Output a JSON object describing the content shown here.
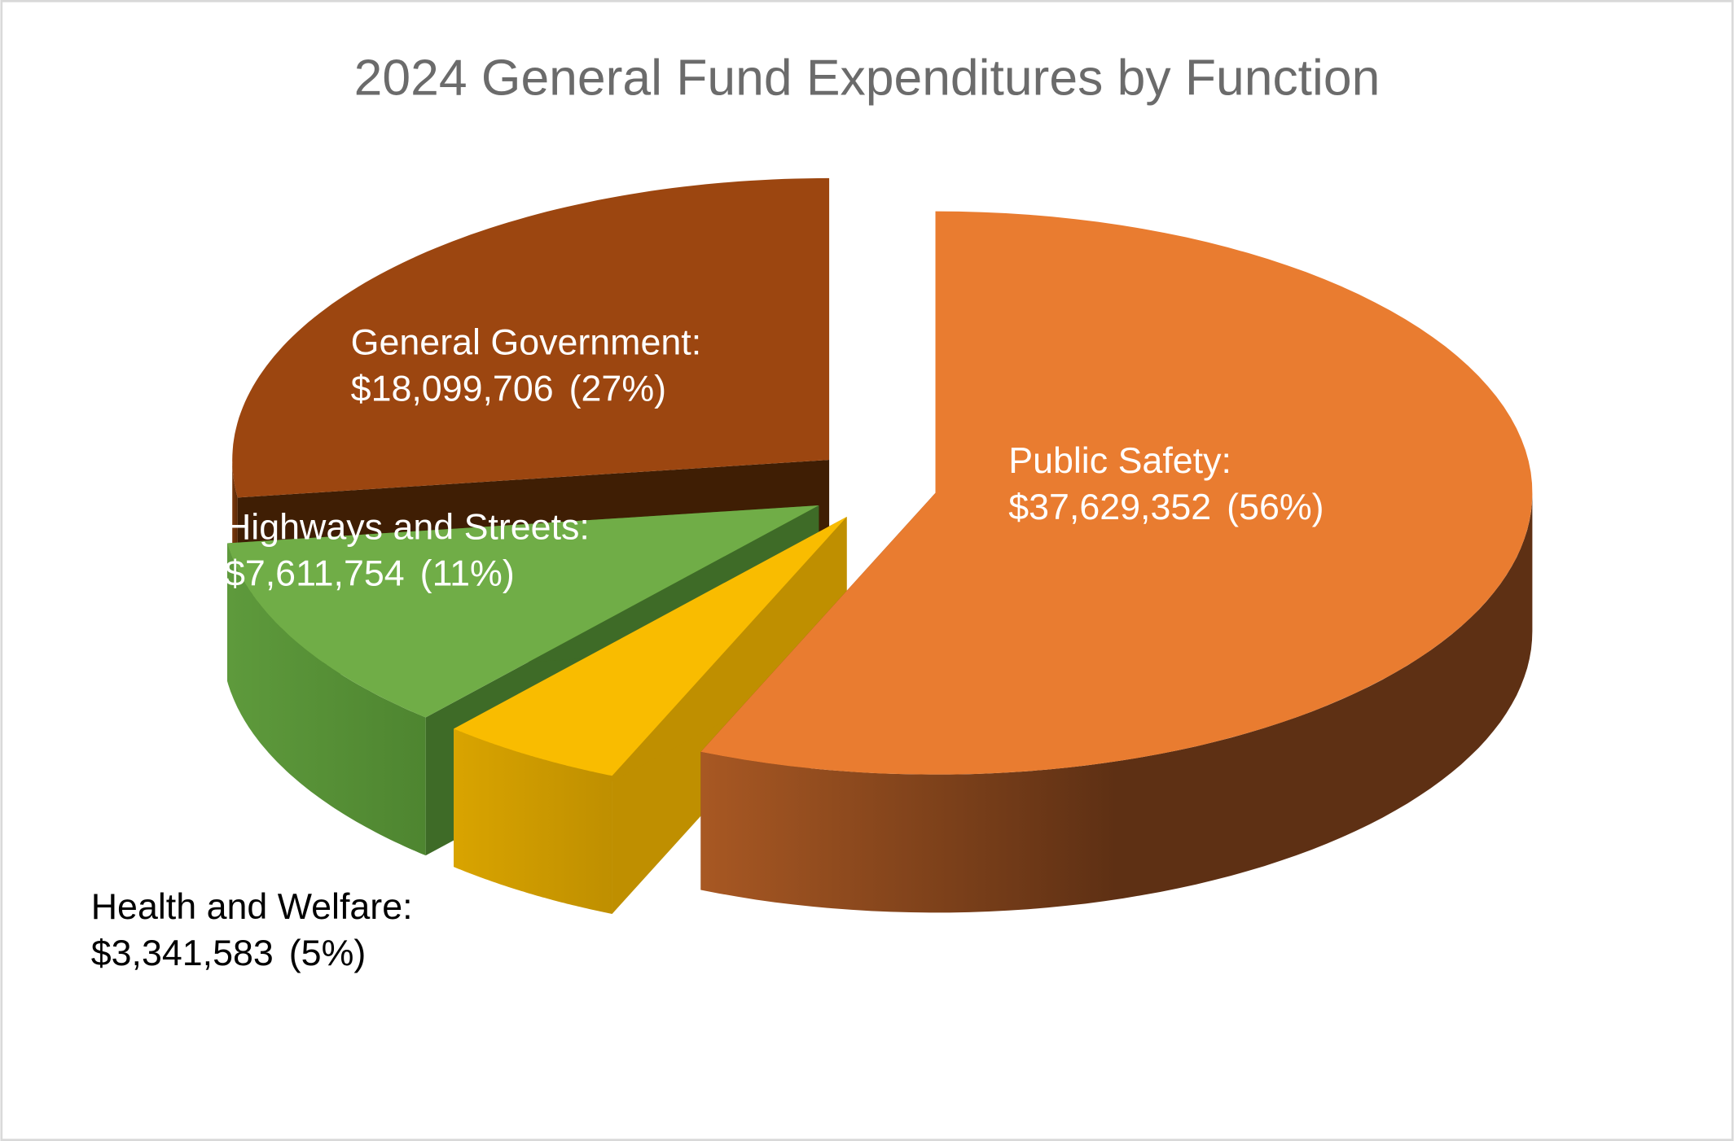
{
  "chart_data": {
    "type": "pie",
    "variant": "3d-exploded",
    "title": "2024 General Fund Expenditures by Function",
    "slices": [
      {
        "label": "Public Safety:",
        "value": 37629352,
        "value_text": "$37,629,352",
        "percent_text": "(56%)",
        "color": "#E97C30",
        "side_color": "#5E3014",
        "label_color": "#ffffff"
      },
      {
        "label": "Health and Welfare:",
        "value": 3341583,
        "value_text": "$3,341,583",
        "percent_text": "(5%)",
        "color": "#F9BC00",
        "side_color": "#BF8F00",
        "label_color": "#000000"
      },
      {
        "label": "Highways and Streets:",
        "value": 7611754,
        "value_text": "$7,611,754",
        "percent_text": "(11%)",
        "color": "#70AD47",
        "side_color": "#3E6B27",
        "label_color": "#ffffff"
      },
      {
        "label": "General Government:",
        "value": 18099706,
        "value_text": "$18,099,706",
        "percent_text": "(27%)",
        "color": "#9C4610",
        "side_color": "#3F1E04",
        "label_color": "#ffffff"
      }
    ],
    "legend": "none (data labels)"
  }
}
